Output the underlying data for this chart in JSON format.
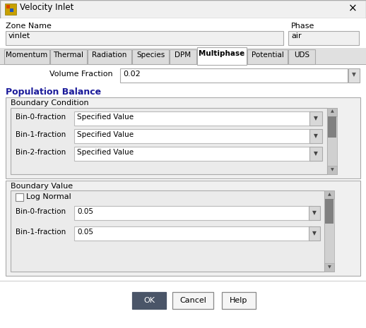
{
  "title": "Velocity Inlet",
  "zone_name_label": "Zone Name",
  "zone_name_value": "vinlet",
  "phase_label": "Phase",
  "phase_value": "air",
  "tabs": [
    "Momentum",
    "Thermal",
    "Radiation",
    "Species",
    "DPM",
    "Multiphase",
    "Potential",
    "UDS"
  ],
  "active_tab": "Multiphase",
  "volume_fraction_label": "Volume Fraction",
  "volume_fraction_value": "0.02",
  "section_title": "Population Balance",
  "bc_label": "Boundary Condition",
  "bc_rows": [
    {
      "label": "Bin-0-fraction",
      "value": "Specified Value"
    },
    {
      "label": "Bin-1-fraction",
      "value": "Specified Value"
    },
    {
      "label": "Bin-2-fraction",
      "value": "Specified Value"
    }
  ],
  "bv_label": "Boundary Value",
  "log_normal_label": "Log Normal",
  "bv_rows": [
    {
      "label": "Bin-0-fraction",
      "value": "0.05"
    },
    {
      "label": "Bin-1-fraction",
      "value": "0.05"
    }
  ],
  "buttons": [
    {
      "label": "OK",
      "bg": "#4a5568",
      "fg": "#ffffff",
      "border": "#4a5568"
    },
    {
      "label": "Cancel",
      "bg": "#f5f5f5",
      "fg": "#000000",
      "border": "#888888"
    },
    {
      "label": "Help",
      "bg": "#f5f5f5",
      "fg": "#000000",
      "border": "#888888"
    }
  ],
  "dialog_bg": "#f5f5f5",
  "titlebar_bg": "#f0f0f0",
  "input_bg": "#ffffff",
  "tab_active_bg": "#f5f5f5",
  "tab_inactive_bg": "#e0e0e0",
  "tab_border": "#aaaaaa",
  "section_color": "#1a1a9a",
  "panel_bg": "#f0f0f0",
  "inner_panel_bg": "#e8e8e8",
  "scrollbar_track": "#d0d0d0",
  "scrollbar_thumb": "#808080",
  "border_color": "#999999",
  "text_color": "#000000",
  "dropdown_bg": "#d8d8d8"
}
